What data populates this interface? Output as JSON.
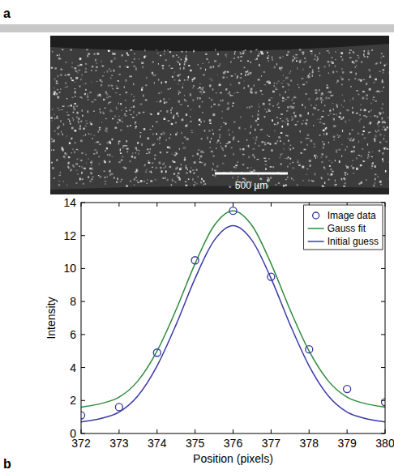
{
  "figure": {
    "panel_labels": [
      "a",
      "b"
    ],
    "scale_bar_label": "500 µm"
  },
  "chart_data": {
    "type": "line",
    "xlabel": "Position (pixels)",
    "ylabel": "Intensity",
    "xlim": [
      372,
      380
    ],
    "ylim": [
      0,
      14
    ],
    "xticks": [
      372,
      373,
      374,
      375,
      376,
      377,
      378,
      379,
      380
    ],
    "yticks": [
      0,
      2,
      4,
      6,
      8,
      10,
      12,
      14
    ],
    "grid": false,
    "legend": "upper right",
    "series": [
      {
        "name": "Image data",
        "type": "scatter",
        "marker": "circle",
        "color": "#3636a8",
        "x": [
          372,
          373,
          374,
          375,
          376,
          377,
          378,
          379,
          380
        ],
        "values": [
          1.1,
          1.6,
          4.9,
          10.5,
          13.5,
          9.5,
          5.1,
          2.7,
          1.9
        ]
      },
      {
        "name": "Gauss fit",
        "type": "line",
        "line_style": "solid",
        "color": "#2e8b3c",
        "x": [
          372,
          372.5,
          373,
          373.5,
          374,
          374.5,
          375,
          375.5,
          376,
          376.5,
          377,
          377.5,
          378,
          378.5,
          379,
          379.5,
          380
        ],
        "values": [
          1.6,
          1.8,
          2.2,
          3.2,
          5.0,
          7.5,
          10.3,
          12.6,
          13.5,
          12.6,
          10.3,
          7.5,
          5.0,
          3.2,
          2.2,
          1.8,
          1.6
        ]
      },
      {
        "name": "Initial guess",
        "type": "line",
        "line_style": "solid",
        "color": "#3a3aa6",
        "x": [
          372,
          372.5,
          373,
          373.5,
          374,
          374.5,
          375,
          375.5,
          376,
          376.5,
          377,
          377.5,
          378,
          378.5,
          379,
          379.5,
          380
        ],
        "values": [
          0.7,
          0.9,
          1.3,
          2.3,
          4.1,
          6.6,
          9.4,
          11.7,
          12.6,
          11.7,
          9.4,
          6.6,
          4.1,
          2.3,
          1.3,
          0.9,
          0.7
        ]
      }
    ]
  }
}
